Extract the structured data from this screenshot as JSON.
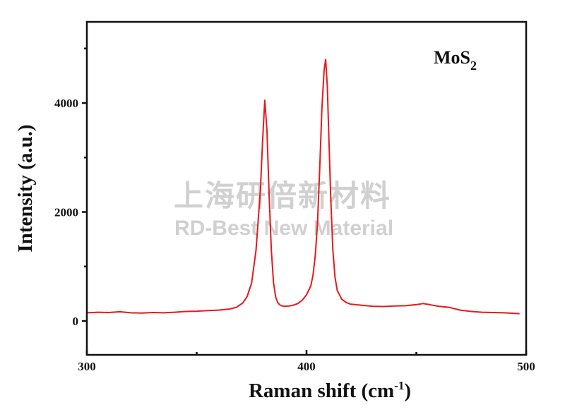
{
  "chart_data": {
    "type": "line",
    "title": "",
    "annotation": "MoS2",
    "annotation_parts": {
      "base": "MoS",
      "sub": "2"
    },
    "xlabel": "Raman shift (cm-1)",
    "xlabel_parts": {
      "main": "Raman shift (cm",
      "sup": "-1",
      "close": ")"
    },
    "ylabel": "Intensity (a.u.)",
    "xlim": [
      300,
      500
    ],
    "ylim": [
      -500,
      5800
    ],
    "x_ticks": [
      300,
      400,
      500
    ],
    "x_tick_labels": [
      "300",
      "400",
      "500"
    ],
    "y_ticks": [
      0,
      2000,
      4000
    ],
    "y_tick_labels": [
      "0",
      "2000",
      "4000"
    ],
    "grid": false,
    "legend": null,
    "line_color": "#e8191b",
    "series": [
      {
        "name": "MoS2",
        "x": [
          300,
          305,
          310,
          315,
          320,
          325,
          330,
          335,
          340,
          345,
          350,
          355,
          360,
          365,
          368,
          371,
          373,
          375,
          377,
          379,
          380,
          381,
          382,
          383,
          384,
          385,
          386,
          387,
          388,
          389,
          390,
          392,
          394,
          396,
          398,
          400,
          402,
          403,
          404,
          405,
          406,
          407,
          408,
          408.7,
          409.5,
          410,
          411,
          412,
          413,
          414,
          416,
          418,
          420,
          425,
          430,
          435,
          440,
          445,
          450,
          453,
          456,
          460,
          465,
          470,
          475,
          480,
          485,
          490,
          497
        ],
        "y": [
          150,
          160,
          155,
          170,
          150,
          145,
          155,
          150,
          160,
          175,
          180,
          190,
          200,
          220,
          250,
          330,
          450,
          700,
          1300,
          2400,
          3300,
          4050,
          3500,
          2300,
          1300,
          700,
          430,
          330,
          290,
          275,
          270,
          275,
          290,
          320,
          380,
          480,
          650,
          850,
          1200,
          1800,
          2800,
          3900,
          4600,
          4800,
          4300,
          3600,
          2300,
          1300,
          800,
          560,
          400,
          340,
          310,
          290,
          270,
          265,
          275,
          280,
          300,
          320,
          300,
          270,
          250,
          200,
          175,
          160,
          155,
          150,
          135
        ]
      }
    ]
  },
  "watermark": {
    "chinese": "上海研倍新材料",
    "english": "RD-Best New Material"
  }
}
